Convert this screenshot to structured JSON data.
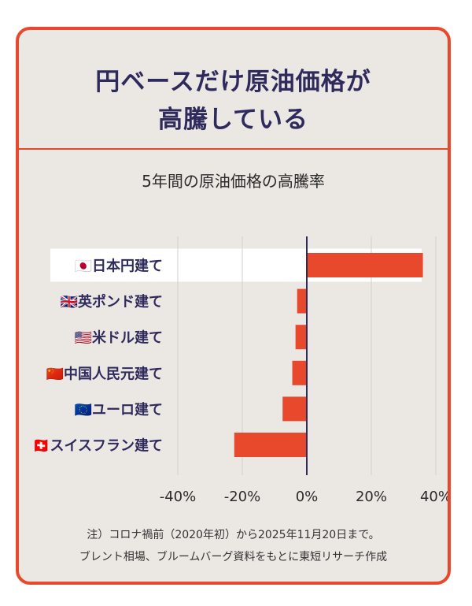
{
  "title_lines": [
    "円ベースだけ原油価格が",
    "高騰している"
  ],
  "colors": {
    "accent": "#e8492c",
    "bar": "#e8492c",
    "title": "#2f2a5c",
    "panel": "#ebe7e3",
    "highlight": "#ffffff"
  },
  "chart_data": {
    "type": "bar",
    "orientation": "horizontal",
    "title": "5年間の原油価格の高騰率",
    "categories": [
      "🇯🇵日本円建て",
      "🇬🇧英ポンド建て",
      "🇺🇸米ドル建て",
      "🇨🇳中国人民元建て",
      "🇪🇺ユーロ建て",
      "🇨🇭スイスフラン建て"
    ],
    "values": [
      36,
      -3,
      -3.5,
      -4.5,
      -7.5,
      -22.5
    ],
    "unit": "%",
    "xlim": [
      -40,
      40
    ],
    "xticks": [
      -40,
      -20,
      0,
      20,
      40
    ],
    "xtick_labels": [
      "-40%",
      "-20%",
      "0%",
      "20%",
      "40%"
    ],
    "grid": true,
    "highlighted_category": "🇯🇵日本円建て"
  },
  "notes": [
    "注）コロナ禍前（2020年初）から2025年11月20日まで。",
    "ブレント相場、ブルームバーグ資料をもとに東短リサーチ作成"
  ]
}
